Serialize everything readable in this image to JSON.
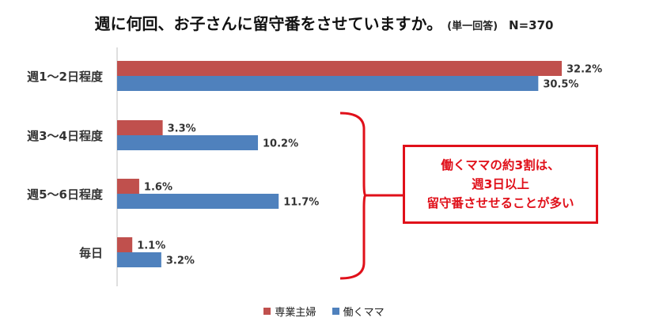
{
  "title": {
    "main": "週に何回、お子さんに留守番をさせていますか。",
    "sub": "(単一回答)",
    "n": "N=370"
  },
  "callout": {
    "lines": [
      "働くママの約3割は、",
      "週3日以上",
      "留守番させせることが多い"
    ]
  },
  "colors": {
    "series1": "#c0504d",
    "series2": "#4f81bd",
    "callout": "#e0101a",
    "axis": "#bfbfbf"
  },
  "chart_data": {
    "type": "bar",
    "orientation": "horizontal",
    "categories": [
      "週1〜2日程度",
      "週3〜4日程度",
      "週5〜6日程度",
      "毎日"
    ],
    "series": [
      {
        "name": "専業主婦",
        "values": [
          32.2,
          3.3,
          1.6,
          1.1
        ],
        "labels": [
          "32.2%",
          "3.3%",
          "1.6%",
          "1.1%"
        ]
      },
      {
        "name": "働くママ",
        "values": [
          30.5,
          10.2,
          11.7,
          3.2
        ],
        "labels": [
          "30.5%",
          "10.2%",
          "11.7%",
          "3.2%"
        ]
      }
    ],
    "xlim": [
      0,
      33
    ],
    "grid": false,
    "legend_position": "bottom"
  }
}
